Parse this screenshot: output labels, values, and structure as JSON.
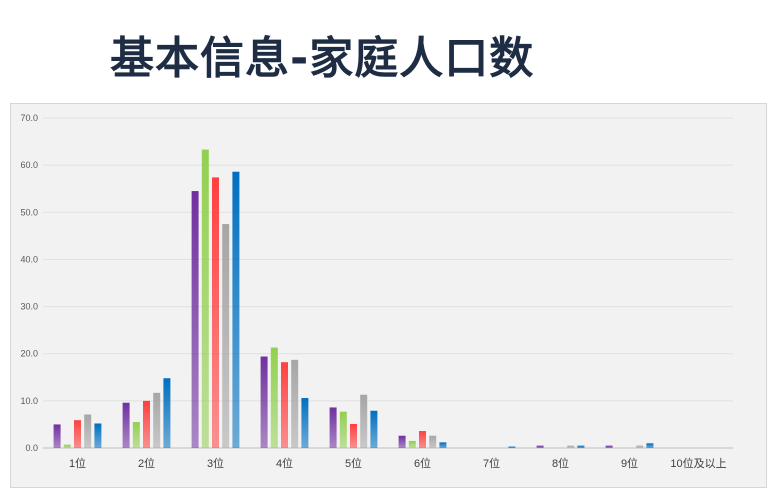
{
  "page": {
    "title": "基本信息-家庭人口数"
  },
  "colors": [
    "#7030a0",
    "#92d050",
    "#ff4040",
    "#a6a6a6",
    "#0070c0"
  ],
  "chart_data": {
    "type": "bar",
    "title": "基本信息-家庭人口数",
    "xlabel": "",
    "ylabel": "",
    "ylim": [
      0,
      70
    ],
    "yticks": [
      "0.0",
      "10.0",
      "20.0",
      "30.0",
      "40.0",
      "50.0",
      "60.0",
      "70.0"
    ],
    "grid": true,
    "legend": "none",
    "categories": [
      "1位",
      "2位",
      "3位",
      "4位",
      "5位",
      "6位",
      "7位",
      "8位",
      "9位",
      "10位及以上"
    ],
    "series": [
      {
        "values": [
          5.0,
          9.6,
          54.5,
          19.4,
          8.6,
          2.6,
          0.0,
          0.5,
          0.5,
          0.0
        ]
      },
      {
        "values": [
          0.7,
          5.5,
          63.3,
          21.3,
          7.7,
          1.5,
          0.0,
          0.0,
          0.0,
          0.0
        ]
      },
      {
        "values": [
          5.9,
          10.0,
          57.4,
          18.2,
          5.1,
          3.6,
          0.0,
          0.0,
          0.0,
          0.0
        ]
      },
      {
        "values": [
          7.1,
          11.7,
          47.5,
          18.7,
          11.3,
          2.6,
          0.0,
          0.5,
          0.5,
          0.0
        ]
      },
      {
        "values": [
          5.2,
          14.8,
          58.6,
          10.6,
          7.9,
          1.2,
          0.3,
          0.5,
          1.0,
          0.0
        ]
      }
    ]
  }
}
